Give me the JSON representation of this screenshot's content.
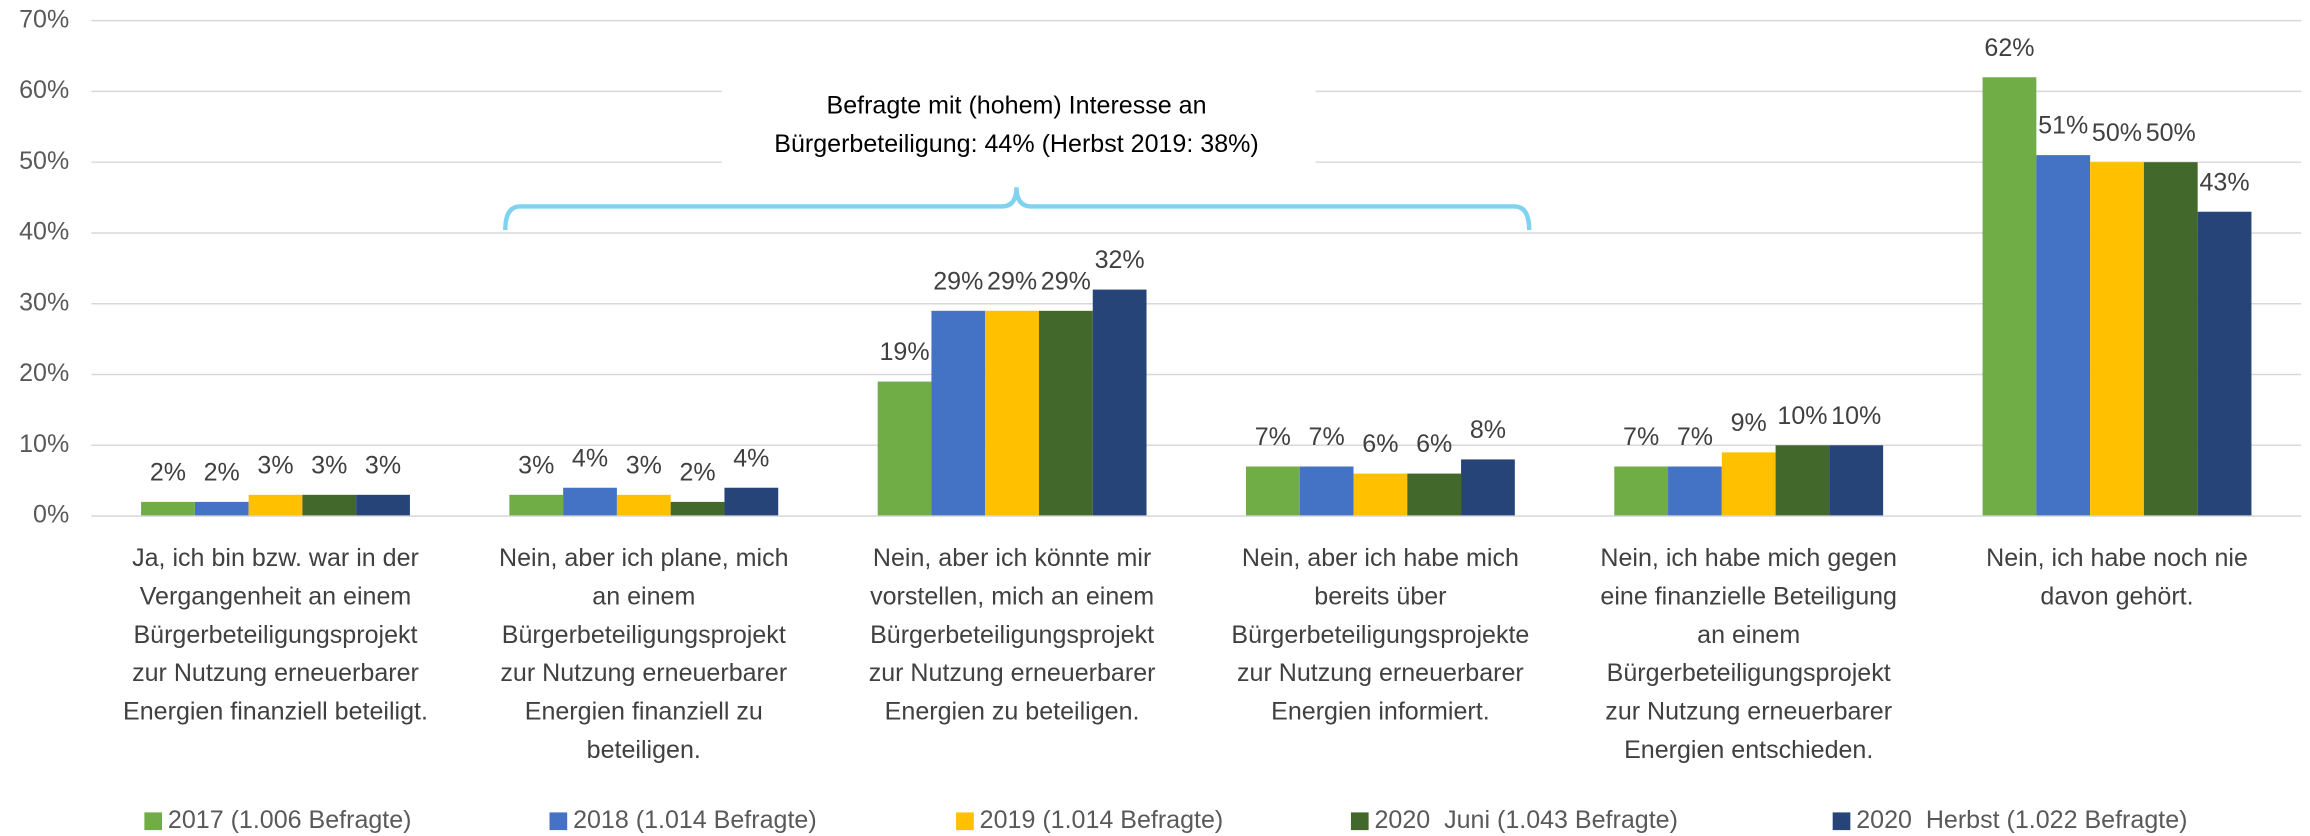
{
  "chart_data": {
    "type": "bar",
    "annotation": "Befragte mit (hohem) Interesse an\nBürgerbeteiligung: 44% (Herbst 2019: 38%)",
    "categories": [
      "Ja, ich bin bzw. war in der\nVergangenheit an einem\nBürgerbeteiligungsprojekt\nzur Nutzung erneuerbarer\nEnergien finanziell beteiligt.",
      "Nein, aber ich plane, mich\nan einem\nBürgerbeteiligungsprojekt\nzur Nutzung erneuerbarer\nEnergien finanziell zu\nbeteiligen.",
      "Nein, aber ich könnte mir\nvorstellen, mich an einem\nBürgerbeteiligungsprojekt\nzur Nutzung erneuerbarer\nEnergien zu beteiligen.",
      "Nein, aber ich habe mich\nbereits über\nBürgerbeteiligungsprojekte\nzur Nutzung erneuerbarer\nEnergien informiert.",
      "Nein, ich habe mich gegen\neine finanzielle Beteiligung\nan einem\nBürgerbeteiligungsprojekt\nzur Nutzung erneuerbarer\nEnergien entschieden.",
      "Nein, ich habe noch nie\ndavon gehört."
    ],
    "series": [
      {
        "name": "2017 (1.006 Befragte)",
        "color": "#70ad47",
        "values": [
          2,
          3,
          19,
          7,
          7,
          62
        ],
        "value_labels": [
          "2%",
          "3%",
          "19%",
          "7%",
          "7%",
          "62%"
        ]
      },
      {
        "name": "2018 (1.014 Befragte)",
        "color": "#4472c4",
        "values": [
          2,
          4,
          29,
          7,
          7,
          51
        ],
        "value_labels": [
          "2%",
          "4%",
          "29%",
          "7%",
          "7%",
          "51%"
        ]
      },
      {
        "name": "2019 (1.014 Befragte)",
        "color": "#ffc000",
        "values": [
          3,
          3,
          29,
          6,
          9,
          50
        ],
        "value_labels": [
          "3%",
          "3%",
          "29%",
          "6%",
          "9%",
          "50%"
        ]
      },
      {
        "name": "2020  Juni (1.043 Befragte)",
        "color": "#43682b",
        "values": [
          3,
          2,
          29,
          6,
          10,
          50
        ],
        "value_labels": [
          "3%",
          "2%",
          "29%",
          "6%",
          "10%",
          "50%"
        ]
      },
      {
        "name": "2020  Herbst (1.022 Befragte)",
        "color": "#264478",
        "values": [
          3,
          4,
          32,
          8,
          10,
          43
        ],
        "value_labels": [
          "3%",
          "4%",
          "32%",
          "8%",
          "10%",
          "43%"
        ]
      }
    ],
    "ylim": [
      0,
      70
    ],
    "yticks": [
      {
        "value": 0,
        "label": "0%"
      },
      {
        "value": 10,
        "label": "10%"
      },
      {
        "value": 20,
        "label": "20%"
      },
      {
        "value": 30,
        "label": "30%"
      },
      {
        "value": 40,
        "label": "40%"
      },
      {
        "value": 50,
        "label": "50%"
      },
      {
        "value": 60,
        "label": "60%"
      },
      {
        "value": 70,
        "label": "70%"
      }
    ],
    "grid": true,
    "legend": "bottom"
  }
}
